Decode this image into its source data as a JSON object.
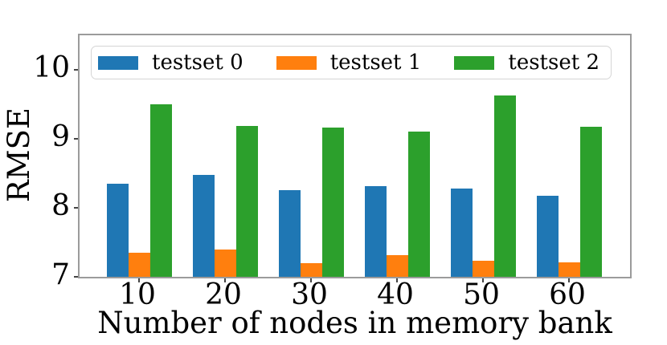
{
  "chart_data": {
    "type": "bar",
    "title": "",
    "xlabel": "Number of nodes in memory bank",
    "ylabel": "RMSE",
    "categories": [
      "10",
      "20",
      "30",
      "40",
      "50",
      "60"
    ],
    "yticks": [
      7,
      8,
      9,
      10
    ],
    "ylim": [
      7,
      10.5
    ],
    "grid": false,
    "legend_position": "upper center, horizontal row inside plot",
    "series": [
      {
        "name": "testset 0",
        "color": "#1f77b4",
        "values": [
          8.35,
          8.48,
          8.26,
          8.31,
          8.28,
          8.18
        ]
      },
      {
        "name": "testset 1",
        "color": "#ff7f0e",
        "values": [
          7.35,
          7.4,
          7.2,
          7.31,
          7.23,
          7.21
        ]
      },
      {
        "name": "testset 2",
        "color": "#2ca02c",
        "values": [
          9.5,
          9.19,
          9.16,
          9.1,
          9.63,
          9.17
        ]
      }
    ]
  }
}
